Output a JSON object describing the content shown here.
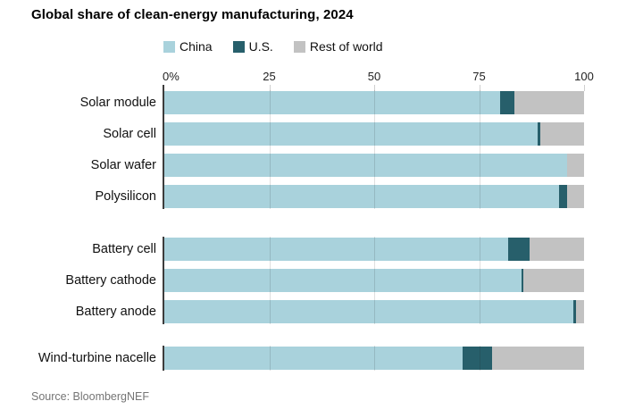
{
  "title": "Global share of clean-energy manufacturing, 2024",
  "source": "Source: BloombergNEF",
  "legend": [
    {
      "label": "China",
      "color": "#a9d2dc"
    },
    {
      "label": "U.S.",
      "color": "#275f6b"
    },
    {
      "label": "Rest of world",
      "color": "#c2c2c2"
    }
  ],
  "axis": {
    "tick_labels": [
      "0%",
      "25",
      "50",
      "75",
      "100"
    ],
    "tick_values": [
      0,
      25,
      50,
      75,
      100
    ]
  },
  "chart_data": {
    "type": "bar",
    "orientation": "horizontal",
    "stacked": true,
    "title": "Global share of clean-energy manufacturing, 2024",
    "unit": "percent",
    "xlim": [
      0,
      100
    ],
    "x_ticks": [
      0,
      25,
      50,
      75,
      100
    ],
    "grid": "vertical-lines-at-25-50-75",
    "legend_position": "top",
    "series_names": [
      "China",
      "U.S.",
      "Rest of world"
    ],
    "series_colors": [
      "#a9d2dc",
      "#275f6b",
      "#c2c2c2"
    ],
    "groups": [
      {
        "categories": [
          "Solar module",
          "Solar cell",
          "Solar wafer",
          "Polysilicon"
        ],
        "values": [
          [
            80,
            3.5,
            16.5
          ],
          [
            89,
            0.5,
            10.5
          ],
          [
            96,
            0,
            4
          ],
          [
            94,
            2,
            4
          ]
        ]
      },
      {
        "categories": [
          "Battery cell",
          "Battery cathode",
          "Battery anode"
        ],
        "values": [
          [
            82,
            5,
            13
          ],
          [
            85,
            0.5,
            14.5
          ],
          [
            97.5,
            0.5,
            2
          ]
        ]
      },
      {
        "categories": [
          "Wind-turbine nacelle"
        ],
        "values": [
          [
            71,
            7,
            22
          ]
        ]
      }
    ]
  }
}
